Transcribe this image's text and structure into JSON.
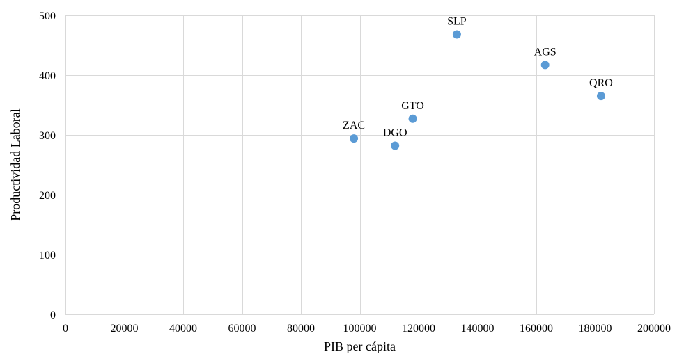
{
  "chart_data": {
    "type": "scatter",
    "title": "",
    "xlabel": "PIB per cápita",
    "ylabel": "Productividad Laboral",
    "xlim": [
      0,
      200000
    ],
    "ylim": [
      0,
      500
    ],
    "x_ticks": [
      0,
      20000,
      40000,
      60000,
      80000,
      100000,
      120000,
      140000,
      160000,
      180000,
      200000
    ],
    "y_ticks": [
      0,
      100,
      200,
      300,
      400,
      500
    ],
    "grid": true,
    "legend": "none",
    "marker_color": "#5b9bd5",
    "points": [
      {
        "label": "SLP",
        "x": 133000,
        "y": 468
      },
      {
        "label": "AGS",
        "x": 163000,
        "y": 417
      },
      {
        "label": "QRO",
        "x": 182000,
        "y": 365
      },
      {
        "label": "GTO",
        "x": 118000,
        "y": 327
      },
      {
        "label": "ZAC",
        "x": 98000,
        "y": 294
      },
      {
        "label": "DGO",
        "x": 112000,
        "y": 282
      }
    ]
  }
}
